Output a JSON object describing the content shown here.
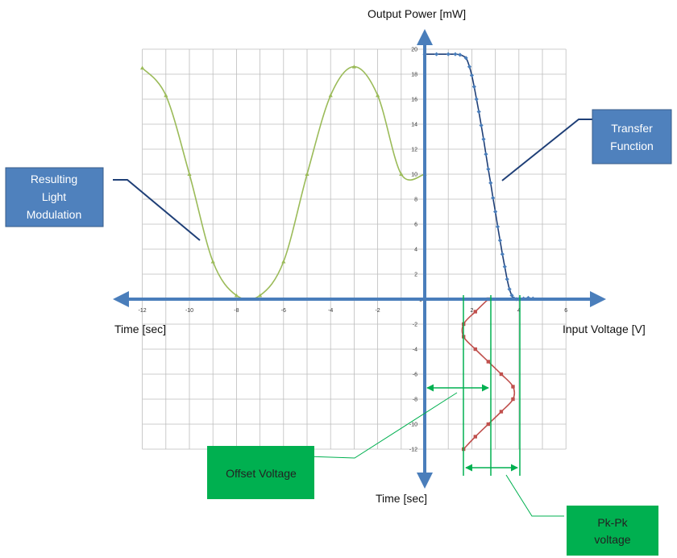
{
  "axis_titles": {
    "output_power": "Output Power [mW]",
    "time_left": "Time [sec]",
    "input_voltage": "Input Voltage [V]",
    "time_bottom": "Time [sec]"
  },
  "callouts": {
    "resulting_light_modulation": [
      "Resulting",
      "Light",
      "Modulation"
    ],
    "transfer_function": [
      "Transfer",
      "Function"
    ],
    "offset_voltage": [
      "Offset Voltage"
    ],
    "pk_pk_voltage": [
      "Pk-Pk",
      "voltage"
    ]
  },
  "colors": {
    "axis": "#4a7ebb",
    "grid": "#bdbdbd",
    "transfer_curve": "#1f3f77",
    "transfer_markers": "#4a7ebb",
    "light_modulation": "#9bbb59",
    "drive_signal": "#c0504d",
    "annotation": "#00b050",
    "callout_blue": "#4f81bd",
    "callout_green": "#00b050"
  },
  "chart_data": {
    "type": "line",
    "x_ticks": [
      "-12",
      "-10",
      "-8",
      "-6",
      "-4",
      "-2",
      "0",
      "2",
      "4",
      "6"
    ],
    "y_ticks_positive": [
      "2",
      "4",
      "6",
      "8",
      "10",
      "12",
      "14",
      "16",
      "18",
      "20"
    ],
    "y_ticks_negative": [
      "-2",
      "-4",
      "-6",
      "-8",
      "-10",
      "-12"
    ],
    "origin_label": "0",
    "xlim": [
      -12,
      6
    ],
    "ylim": [
      -12,
      20
    ],
    "grid": true,
    "series": [
      {
        "role": "transfer_function",
        "x": [
          0,
          0.5,
          1.0,
          1.3,
          1.5,
          1.75,
          1.9,
          2.0,
          2.1,
          2.2,
          2.3,
          2.4,
          2.5,
          2.6,
          2.7,
          2.8,
          2.9,
          3.0,
          3.1,
          3.2,
          3.3,
          3.4,
          3.5,
          3.6,
          3.7,
          3.8,
          3.9,
          4.0,
          4.2,
          4.4,
          4.6
        ],
        "y": [
          19.6,
          19.6,
          19.6,
          19.6,
          19.55,
          19.3,
          18.6,
          17.9,
          17.0,
          16.0,
          15.0,
          13.9,
          12.8,
          11.6,
          10.4,
          9.3,
          8.1,
          7.0,
          5.8,
          4.7,
          3.6,
          2.6,
          1.6,
          0.8,
          0.3,
          0.05,
          0,
          0,
          0.05,
          0.1,
          0.05
        ]
      },
      {
        "role": "light_modulation",
        "x": [
          -12,
          -11,
          -10,
          -9,
          -8,
          -7,
          -6,
          -5,
          -4,
          -3,
          -2,
          -1,
          0
        ],
        "y": [
          18.5,
          16.3,
          10,
          3,
          0.3,
          0.3,
          3,
          10,
          16.3,
          18.6,
          16.3,
          10,
          10
        ]
      },
      {
        "role": "drive_signal",
        "t": [
          0,
          -1,
          -2,
          -3,
          -4,
          -5,
          -6,
          -7,
          -8,
          -9,
          -10,
          -11,
          -12
        ],
        "v": [
          2.7,
          2.15,
          1.65,
          1.65,
          2.15,
          2.7,
          3.25,
          3.75,
          3.75,
          3.25,
          2.7,
          2.15,
          1.65
        ]
      }
    ]
  }
}
